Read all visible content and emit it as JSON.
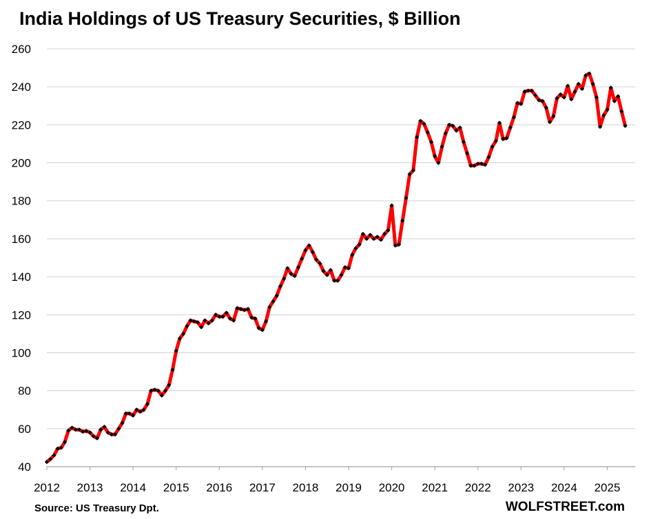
{
  "chart_data": {
    "type": "line",
    "title": "India Holdings of US Treasury Securities, $ Billion",
    "xlabel": "",
    "ylabel": "",
    "ylim": [
      40,
      260
    ],
    "y_ticks": [
      40,
      60,
      80,
      100,
      120,
      140,
      160,
      180,
      200,
      220,
      240,
      260
    ],
    "x_ticks": [
      "2012",
      "2013",
      "2014",
      "2015",
      "2016",
      "2017",
      "2018",
      "2019",
      "2020",
      "2021",
      "2022",
      "2023",
      "2024",
      "2025"
    ],
    "grid": "horizontal",
    "legend": "none",
    "colors": {
      "line": "#ff0000",
      "marker": "#000000"
    },
    "series": [
      {
        "x_start": "2012-01",
        "frequency": "monthly",
        "values": [
          42.5,
          44,
          46,
          49.5,
          50,
          53,
          59,
          60.5,
          59.5,
          59.5,
          58.5,
          58.8,
          58,
          56,
          55,
          59.5,
          61,
          58,
          57,
          57,
          60,
          63,
          68,
          68,
          67,
          70,
          69,
          70,
          73,
          80,
          80.5,
          80,
          77.5,
          80,
          83,
          91,
          101,
          107.5,
          110,
          114,
          117,
          116.5,
          116,
          113.5,
          117,
          115.5,
          117,
          120,
          119,
          119,
          121,
          118,
          117,
          123.5,
          123,
          122.5,
          123,
          118.5,
          118,
          113,
          112,
          116.5,
          124,
          127,
          130,
          135,
          139,
          144.5,
          141.5,
          140.5,
          145,
          149.5,
          154,
          156.5,
          153,
          149,
          147,
          143,
          141,
          143.5,
          138,
          138,
          141,
          145,
          144.5,
          151.5,
          155,
          157,
          162.5,
          160,
          162,
          160,
          161,
          159.5,
          162.5,
          164.5,
          177.5,
          156.5,
          157,
          169.5,
          181.5,
          194,
          196,
          213.5,
          222,
          220.5,
          216,
          211,
          203.5,
          200,
          208.5,
          215.5,
          220,
          219.5,
          217,
          218.5,
          211,
          205,
          198.5,
          198.5,
          199.5,
          199.5,
          199,
          203,
          208.5,
          211.5,
          221,
          212.5,
          213,
          218.5,
          224,
          231.5,
          231,
          237.5,
          238,
          238,
          235.5,
          233,
          232.5,
          229,
          221.5,
          224.5,
          234,
          236,
          234.5,
          240.5,
          233.5,
          237.5,
          241.5,
          239,
          246,
          247,
          241.5,
          234.5,
          219,
          225,
          228,
          239.5,
          232.5,
          235,
          227,
          219.5
        ]
      }
    ]
  },
  "source_note": "Source: US Treasury  Dpt.",
  "brand": "WOLFSTREET.com"
}
